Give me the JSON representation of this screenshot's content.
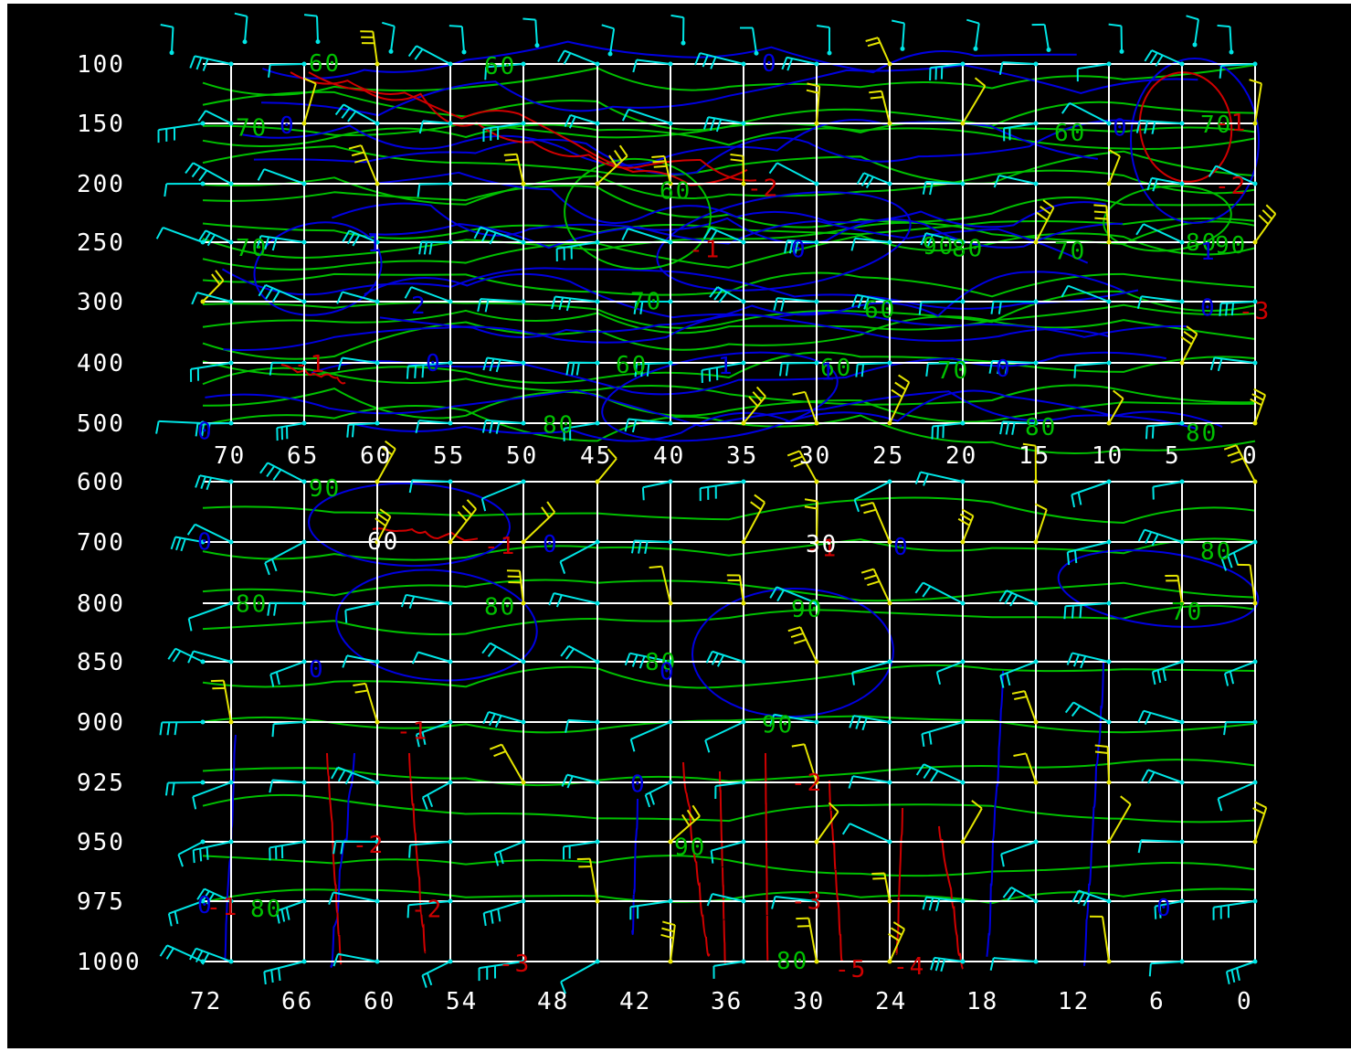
{
  "chart_data": {
    "type": "time-height wind barb cross-section",
    "pressure_levels": [
      "100",
      "150",
      "200",
      "250",
      "300",
      "400",
      "500",
      "600",
      "700",
      "800",
      "850",
      "900",
      "925",
      "950",
      "975",
      "1000"
    ],
    "top_panel_x_ticks": [
      "70",
      "65",
      "60",
      "55",
      "50",
      "45",
      "40",
      "35",
      "30",
      "25",
      "20",
      "15",
      "10",
      "5",
      "0"
    ],
    "bottom_panel_x_ticks": [
      "72",
      "66",
      "60",
      "54",
      "48",
      "42",
      "36",
      "30",
      "24",
      "18",
      "12",
      "6",
      "0"
    ],
    "grid": true,
    "contour_labels": {
      "green": [
        {
          "text": "60",
          "level": "100",
          "x_top": 64
        },
        {
          "text": "60",
          "level": "100",
          "x_top": 52
        },
        {
          "text": "70",
          "level": "150",
          "x_top": 69
        },
        {
          "text": "60",
          "level": "200",
          "x_top": 40
        },
        {
          "text": "60",
          "level": "150",
          "x_top": 13
        },
        {
          "text": "70",
          "level": "150",
          "x_top": 3
        },
        {
          "text": "90",
          "level": "250",
          "x_top": 22
        },
        {
          "text": "80",
          "level": "250",
          "x_top": 20
        },
        {
          "text": "70",
          "level": "250",
          "x_top": 13
        },
        {
          "text": "80",
          "level": "250",
          "x_top": 4
        },
        {
          "text": "90",
          "level": "250",
          "x_top": 2
        },
        {
          "text": "70",
          "level": "250",
          "x_top": 69
        },
        {
          "text": "60",
          "level": "300",
          "x_top": 26
        },
        {
          "text": "70",
          "level": "300",
          "x_top": 42
        },
        {
          "text": "60",
          "level": "400",
          "x_top": 43
        },
        {
          "text": "60",
          "level": "400",
          "x_top": 29
        },
        {
          "text": "70",
          "level": "400",
          "x_top": 21
        },
        {
          "text": "80",
          "level": "500",
          "x_top": 4
        },
        {
          "text": "80",
          "level": "500",
          "x_top": 48
        },
        {
          "text": "80",
          "level": "500",
          "x_top": 15
        },
        {
          "text": "90",
          "level": "600",
          "x_top": 64
        },
        {
          "text": "80",
          "level": "700",
          "x_top": 3
        },
        {
          "text": "80",
          "level": "800",
          "x_bottom": 69
        },
        {
          "text": "80",
          "level": "800",
          "x_bottom": 52
        },
        {
          "text": "90",
          "level": "800",
          "x_bottom": 31
        },
        {
          "text": "70",
          "level": "800",
          "x_bottom": 5
        },
        {
          "text": "80",
          "level": "850",
          "x_bottom": 41
        },
        {
          "text": "90",
          "level": "900",
          "x_bottom": 33
        },
        {
          "text": "90",
          "level": "950",
          "x_bottom": 39
        },
        {
          "text": "80",
          "level": "975",
          "x_bottom": 68
        },
        {
          "text": "80",
          "level": "1000",
          "x_bottom": 32
        }
      ],
      "blue": [
        {
          "text": "0",
          "level": "100",
          "x_top": 33
        },
        {
          "text": "0",
          "level": "150",
          "x_top": 66
        },
        {
          "text": "0",
          "level": "150",
          "x_top": 9
        },
        {
          "text": "0",
          "level": "250",
          "x_top": 31
        },
        {
          "text": "1",
          "level": "250",
          "x_top": 3
        },
        {
          "text": "1",
          "level": "250",
          "x_top": 60
        },
        {
          "text": "2",
          "level": "300",
          "x_top": 57
        },
        {
          "text": "0",
          "level": "300",
          "x_top": 3
        },
        {
          "text": "1",
          "level": "400",
          "x_top": 29
        },
        {
          "text": "0",
          "level": "400",
          "x_top": 56
        },
        {
          "text": "1",
          "level": "400",
          "x_top": 36
        },
        {
          "text": "0",
          "level": "400",
          "x_top": 17
        },
        {
          "text": "0",
          "level": "500",
          "x_top": 72
        },
        {
          "text": "0",
          "level": "700",
          "x_bottom": 72
        },
        {
          "text": "0",
          "level": "700",
          "x_bottom": 48
        },
        {
          "text": "0",
          "level": "700",
          "x_bottom": 24
        },
        {
          "text": "0",
          "level": "850",
          "x_bottom": 64
        },
        {
          "text": "0",
          "level": "850",
          "x_bottom": 40
        },
        {
          "text": "0",
          "level": "925",
          "x_bottom": 42
        },
        {
          "text": "0",
          "level": "975",
          "x_bottom": 72
        },
        {
          "text": "0",
          "level": "975",
          "x_bottom": 6
        }
      ],
      "red": [
        {
          "text": "-1",
          "level": "150",
          "x_top": 2
        },
        {
          "text": "-2",
          "level": "200",
          "x_top": 2
        },
        {
          "text": "-2",
          "level": "200",
          "x_top": 34
        },
        {
          "text": "-1",
          "level": "250",
          "x_top": 38
        },
        {
          "text": "-3",
          "level": "300",
          "x_top": 0
        },
        {
          "text": "-1",
          "level": "400",
          "x_top": 65
        },
        {
          "text": "-1",
          "level": "700",
          "x_bottom": 52
        },
        {
          "text": "-1",
          "level": "700",
          "x_bottom": 30
        },
        {
          "text": "-1",
          "level": "900",
          "x_bottom": 58
        },
        {
          "text": "-2",
          "level": "925",
          "x_bottom": 31
        },
        {
          "text": "-2",
          "level": "950",
          "x_bottom": 61
        },
        {
          "text": "-1",
          "level": "975",
          "x_bottom": 71
        },
        {
          "text": "-2",
          "level": "975",
          "x_bottom": 57
        },
        {
          "text": "-3",
          "level": "975",
          "x_bottom": 31
        },
        {
          "text": "-3",
          "level": "1000",
          "x_bottom": 51
        },
        {
          "text": "-4",
          "level": "1000",
          "x_bottom": 24
        },
        {
          "text": "-5",
          "level": "1000",
          "x_bottom": 28
        }
      ],
      "white": [
        {
          "text": "60",
          "level": "700",
          "x_bottom": 60
        },
        {
          "text": "30",
          "level": "700",
          "x_bottom": 30
        }
      ]
    },
    "colors": {
      "background": "#000000",
      "grid": "#ffffff",
      "labels": "#ffffff",
      "wind_barbs": "#00e5e5",
      "wind_barbs_alt": "#e5e500",
      "contour_green": "#00c000",
      "contour_blue": "#0000e0",
      "contour_red": "#d00000"
    }
  }
}
